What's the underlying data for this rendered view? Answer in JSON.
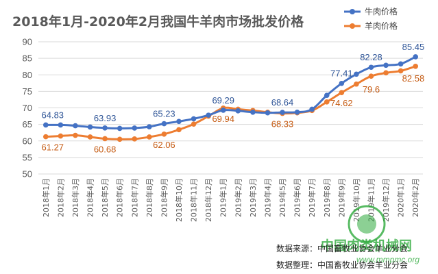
{
  "chart_data": {
    "type": "line",
    "title": "2018年1月-2020年2月我国牛羊肉市场批发价格",
    "categories": [
      "2018年1月",
      "2018年2月",
      "2018年3月",
      "2018年4月",
      "2018年5月",
      "2018年6月",
      "2018年7月",
      "2018年8月",
      "2018年9月",
      "2018年10月",
      "2018年11月",
      "2018年12月",
      "2019年1月",
      "2019年2月",
      "2019年3月",
      "2019年4月",
      "2019年5月",
      "2019年6月",
      "2019年7月",
      "2019年8月",
      "2019年9月",
      "2019年10月",
      "2019年11月",
      "2019年12月",
      "2020年1月",
      "2020年2月"
    ],
    "ylim": [
      50,
      90
    ],
    "yticks": [
      50,
      55,
      60,
      65,
      70,
      75,
      80,
      85,
      90
    ],
    "grid": true,
    "legend_position": "top-right",
    "series": [
      {
        "name": "牛肉价格",
        "color": "#4472c4",
        "values": [
          64.83,
          64.83,
          64.6,
          64.2,
          63.93,
          63.8,
          63.9,
          64.3,
          65.23,
          65.9,
          66.7,
          67.8,
          69.29,
          69.1,
          68.7,
          68.5,
          68.64,
          68.7,
          69.6,
          73.8,
          77.41,
          80.2,
          82.28,
          82.9,
          83.3,
          85.45
        ]
      },
      {
        "name": "羊肉价格",
        "color": "#ed7d31",
        "values": [
          61.27,
          61.5,
          61.7,
          61.2,
          60.68,
          60.5,
          60.6,
          61.2,
          62.06,
          63.4,
          65.1,
          67.5,
          69.94,
          69.6,
          69.2,
          68.7,
          68.33,
          68.5,
          69.2,
          71.8,
          74.62,
          77.2,
          79.6,
          80.6,
          81.2,
          82.58
        ]
      }
    ],
    "data_labels": [
      {
        "series": 0,
        "index": 0,
        "text": "64.83"
      },
      {
        "series": 0,
        "index": 4,
        "text": "63.93"
      },
      {
        "series": 0,
        "index": 8,
        "text": "65.23"
      },
      {
        "series": 0,
        "index": 12,
        "text": "69.29"
      },
      {
        "series": 0,
        "index": 16,
        "text": "68.64"
      },
      {
        "series": 0,
        "index": 20,
        "text": "77.41"
      },
      {
        "series": 0,
        "index": 22,
        "text": "82.28"
      },
      {
        "series": 0,
        "index": 25,
        "text": "85.45"
      },
      {
        "series": 1,
        "index": 0,
        "text": "61.27"
      },
      {
        "series": 1,
        "index": 4,
        "text": "60.68"
      },
      {
        "series": 1,
        "index": 8,
        "text": "62.06"
      },
      {
        "series": 1,
        "index": 12,
        "text": "69.94"
      },
      {
        "series": 1,
        "index": 16,
        "text": "68.33"
      },
      {
        "series": 1,
        "index": 20,
        "text": "74.62"
      },
      {
        "series": 1,
        "index": 22,
        "text": "79.6"
      },
      {
        "series": 1,
        "index": 25,
        "text": "82.58"
      }
    ]
  },
  "footer": {
    "source": "数据来源：中国畜牧业协会羊业分会",
    "compiled": "数据整理：中国畜牧业协会羊业分会"
  },
  "watermark": {
    "site_name": "中国肉类机械网",
    "url": "www.mmpmc.org"
  },
  "colors": {
    "grid": "#d9d9d9",
    "axis_text": "#595959"
  }
}
